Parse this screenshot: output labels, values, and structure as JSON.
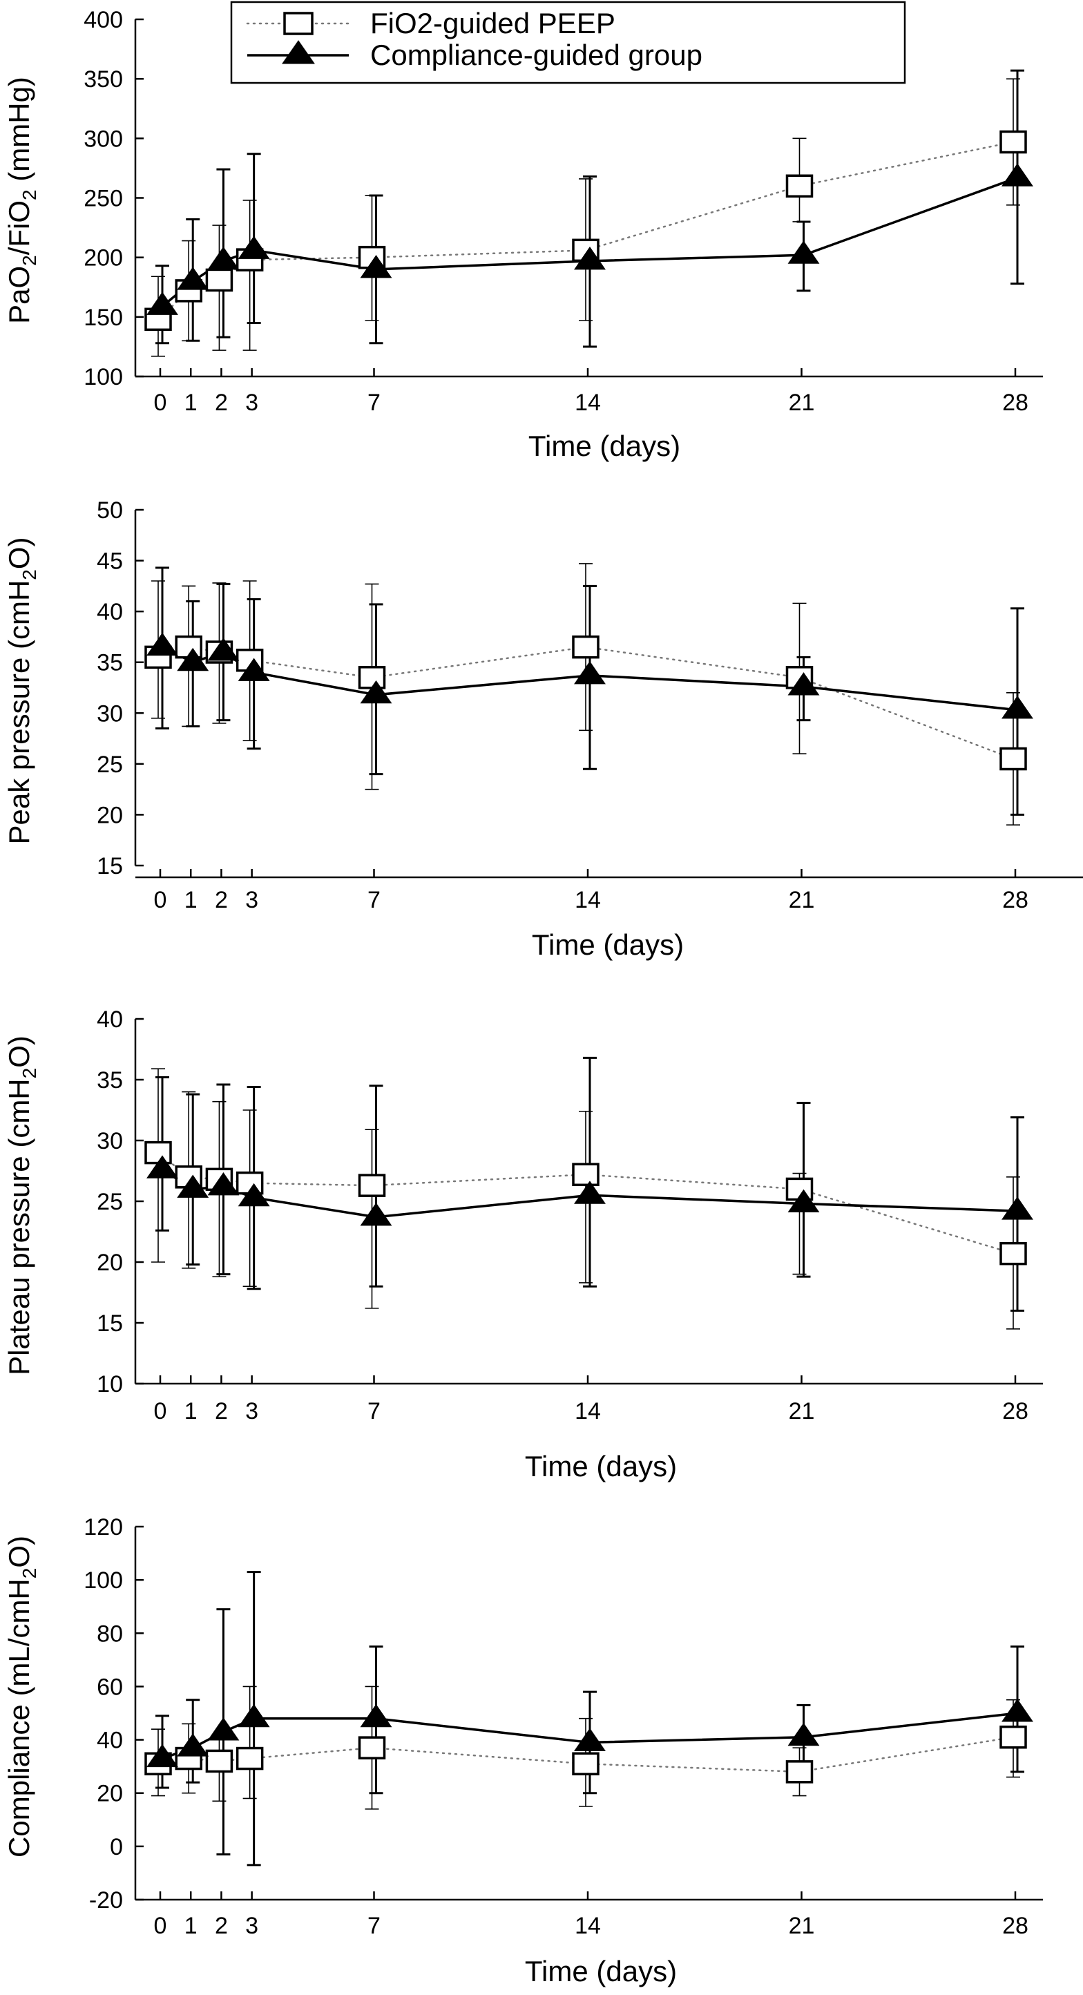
{
  "legend": {
    "entries": [
      "FiO2-guided PEEP",
      "Compliance-guided group"
    ]
  },
  "chart_data": [
    {
      "type": "line",
      "title": "",
      "xlabel": "Time (days)",
      "ylabel": "PaO2/FiO2 (mmHg)",
      "ylabel_parts": {
        "a": "PaO",
        "b": "2",
        "c": "/FiO",
        "d": "2",
        "e": " (mmHg)"
      },
      "x": [
        0,
        1,
        2,
        3,
        7,
        14,
        21,
        28
      ],
      "x_tick_labels": [
        "0",
        "1",
        "2",
        "3",
        "7",
        "14",
        "21",
        "28"
      ],
      "ylim": [
        100,
        400
      ],
      "yticks": [
        100,
        150,
        200,
        250,
        300,
        350,
        400
      ],
      "y_tick_labels": [
        "100",
        "150",
        "200",
        "250",
        "300",
        "350",
        "400"
      ],
      "legend_position": "top",
      "series": [
        {
          "name": "FiO2-guided PEEP",
          "style": "dotted-open-square",
          "values": [
            148,
            172,
            181,
            198,
            200,
            206,
            260,
            297
          ],
          "error_low": [
            117,
            130,
            122,
            122,
            147,
            147,
            230,
            244
          ],
          "error_high": [
            184,
            214,
            227,
            248,
            252,
            266,
            300,
            350
          ]
        },
        {
          "name": "Compliance-guided group",
          "style": "solid-filled-triangle",
          "values": [
            159,
            180,
            197,
            206,
            190,
            197,
            202,
            267
          ],
          "error_low": [
            128,
            130,
            133,
            145,
            128,
            125,
            172,
            178
          ],
          "error_high": [
            193,
            232,
            274,
            287,
            252,
            268,
            230,
            357
          ]
        }
      ]
    },
    {
      "type": "line",
      "title": "",
      "xlabel": "Time (days)",
      "ylabel": "Peak pressure (cmH2O)",
      "ylabel_parts": {
        "a": "Peak pressure (cmH",
        "b": "2",
        "c": "O)"
      },
      "x": [
        0,
        1,
        2,
        3,
        7,
        14,
        21,
        28
      ],
      "x_tick_labels": [
        "0",
        "1",
        "2",
        "3",
        "7",
        "14",
        "21",
        "28"
      ],
      "ylim": [
        15,
        50
      ],
      "yticks": [
        15,
        20,
        25,
        30,
        35,
        40,
        45,
        50
      ],
      "y_tick_labels": [
        "15",
        "20",
        "25",
        "30",
        "35",
        "40",
        "45",
        "50"
      ],
      "series": [
        {
          "name": "FiO2-guided PEEP",
          "style": "dotted-open-square",
          "values": [
            35.5,
            36.5,
            36,
            35.2,
            33.5,
            36.5,
            33.5,
            25.5
          ],
          "error_low": [
            29.5,
            28.7,
            29,
            27.3,
            22.5,
            28.3,
            26,
            19
          ],
          "error_high": [
            43,
            42.5,
            42.8,
            43,
            42.7,
            44.7,
            40.8,
            32
          ]
        },
        {
          "name": "Compliance-guided group",
          "style": "solid-filled-triangle",
          "values": [
            36.5,
            35,
            36,
            34,
            31.8,
            33.7,
            32.6,
            30.3
          ],
          "error_low": [
            28.5,
            28.7,
            29.3,
            26.5,
            24,
            24.5,
            29.3,
            20
          ],
          "error_high": [
            44.3,
            41,
            42.7,
            41.2,
            40.7,
            42.5,
            35.5,
            40.3
          ]
        }
      ]
    },
    {
      "type": "line",
      "title": "",
      "xlabel": "Time (days)",
      "ylabel": "Plateau pressure (cmH2O)",
      "ylabel_parts": {
        "a": "Plateau pressure (cmH",
        "b": "2",
        "c": "O)"
      },
      "x": [
        0,
        1,
        2,
        3,
        7,
        14,
        21,
        28
      ],
      "x_tick_labels": [
        "0",
        "1",
        "2",
        "3",
        "7",
        "14",
        "21",
        "28"
      ],
      "ylim": [
        10,
        40
      ],
      "yticks": [
        10,
        15,
        20,
        25,
        30,
        35,
        40
      ],
      "y_tick_labels": [
        "10",
        "15",
        "20",
        "25",
        "30",
        "35",
        "40"
      ],
      "series": [
        {
          "name": "FiO2-guided PEEP",
          "style": "dotted-open-square",
          "values": [
            29,
            27,
            26.8,
            26.5,
            26.3,
            27.2,
            26,
            20.7
          ],
          "error_low": [
            20,
            19.5,
            18.8,
            18,
            16.2,
            18.3,
            19,
            14.5
          ],
          "error_high": [
            35.9,
            34,
            33.2,
            32.5,
            30.9,
            32.4,
            27.3,
            27
          ]
        },
        {
          "name": "Compliance-guided group",
          "style": "solid-filled-triangle",
          "values": [
            27.6,
            26,
            26.2,
            25.3,
            23.7,
            25.5,
            24.8,
            24.2
          ],
          "error_low": [
            22.6,
            19.8,
            19,
            17.8,
            18,
            18,
            18.8,
            16
          ],
          "error_high": [
            35.2,
            33.8,
            34.6,
            34.4,
            34.5,
            36.8,
            33.1,
            31.9
          ]
        }
      ]
    },
    {
      "type": "line",
      "title": "",
      "xlabel": "Time (days)",
      "ylabel": "Compliance (mL/cmH2O)",
      "ylabel_parts": {
        "a": "Compliance (mL/cmH",
        "b": "2",
        "c": "O)"
      },
      "x": [
        0,
        1,
        2,
        3,
        7,
        14,
        21,
        28
      ],
      "x_tick_labels": [
        "0",
        "1",
        "2",
        "3",
        "7",
        "14",
        "21",
        "28"
      ],
      "ylim": [
        -20,
        120
      ],
      "yticks": [
        -20,
        0,
        20,
        40,
        60,
        80,
        100,
        120
      ],
      "y_tick_labels": [
        "-20",
        "0",
        "20",
        "40",
        "60",
        "80",
        "100",
        "120"
      ],
      "series": [
        {
          "name": "FiO2-guided PEEP",
          "style": "dotted-open-square",
          "values": [
            31,
            33,
            32,
            33,
            37,
            31,
            28,
            41
          ],
          "error_low": [
            19,
            20,
            17,
            18,
            14,
            15,
            19,
            26
          ],
          "error_high": [
            44,
            46,
            40,
            60,
            60,
            48,
            37,
            55
          ]
        },
        {
          "name": "Compliance-guided group",
          "style": "solid-filled-triangle",
          "values": [
            33,
            37,
            43,
            48,
            48,
            39,
            41,
            50
          ],
          "error_low": [
            22,
            24,
            -3,
            -7,
            20,
            20,
            30,
            28
          ],
          "error_high": [
            49,
            55,
            89,
            103,
            75,
            58,
            53,
            75
          ]
        }
      ]
    }
  ]
}
